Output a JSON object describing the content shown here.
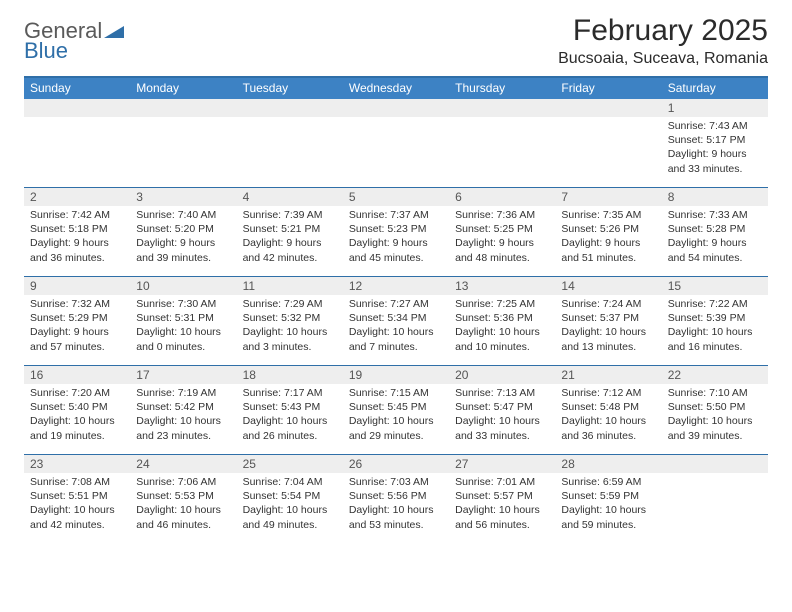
{
  "logo": {
    "word1": "General",
    "word2": "Blue",
    "tri_color": "#2f6fa8"
  },
  "title": "February 2025",
  "location": "Bucsoaia, Suceava, Romania",
  "header_bar_color": "#3d82c4",
  "border_color": "#2f6fa8",
  "daynum_bg": "#eeeeee",
  "dow": [
    "Sunday",
    "Monday",
    "Tuesday",
    "Wednesday",
    "Thursday",
    "Friday",
    "Saturday"
  ],
  "weeks": [
    [
      {
        "n": "",
        "sunrise": "",
        "sunset": "",
        "daylight1": "",
        "daylight2": ""
      },
      {
        "n": "",
        "sunrise": "",
        "sunset": "",
        "daylight1": "",
        "daylight2": ""
      },
      {
        "n": "",
        "sunrise": "",
        "sunset": "",
        "daylight1": "",
        "daylight2": ""
      },
      {
        "n": "",
        "sunrise": "",
        "sunset": "",
        "daylight1": "",
        "daylight2": ""
      },
      {
        "n": "",
        "sunrise": "",
        "sunset": "",
        "daylight1": "",
        "daylight2": ""
      },
      {
        "n": "",
        "sunrise": "",
        "sunset": "",
        "daylight1": "",
        "daylight2": ""
      },
      {
        "n": "1",
        "sunrise": "Sunrise: 7:43 AM",
        "sunset": "Sunset: 5:17 PM",
        "daylight1": "Daylight: 9 hours",
        "daylight2": "and 33 minutes."
      }
    ],
    [
      {
        "n": "2",
        "sunrise": "Sunrise: 7:42 AM",
        "sunset": "Sunset: 5:18 PM",
        "daylight1": "Daylight: 9 hours",
        "daylight2": "and 36 minutes."
      },
      {
        "n": "3",
        "sunrise": "Sunrise: 7:40 AM",
        "sunset": "Sunset: 5:20 PM",
        "daylight1": "Daylight: 9 hours",
        "daylight2": "and 39 minutes."
      },
      {
        "n": "4",
        "sunrise": "Sunrise: 7:39 AM",
        "sunset": "Sunset: 5:21 PM",
        "daylight1": "Daylight: 9 hours",
        "daylight2": "and 42 minutes."
      },
      {
        "n": "5",
        "sunrise": "Sunrise: 7:37 AM",
        "sunset": "Sunset: 5:23 PM",
        "daylight1": "Daylight: 9 hours",
        "daylight2": "and 45 minutes."
      },
      {
        "n": "6",
        "sunrise": "Sunrise: 7:36 AM",
        "sunset": "Sunset: 5:25 PM",
        "daylight1": "Daylight: 9 hours",
        "daylight2": "and 48 minutes."
      },
      {
        "n": "7",
        "sunrise": "Sunrise: 7:35 AM",
        "sunset": "Sunset: 5:26 PM",
        "daylight1": "Daylight: 9 hours",
        "daylight2": "and 51 minutes."
      },
      {
        "n": "8",
        "sunrise": "Sunrise: 7:33 AM",
        "sunset": "Sunset: 5:28 PM",
        "daylight1": "Daylight: 9 hours",
        "daylight2": "and 54 minutes."
      }
    ],
    [
      {
        "n": "9",
        "sunrise": "Sunrise: 7:32 AM",
        "sunset": "Sunset: 5:29 PM",
        "daylight1": "Daylight: 9 hours",
        "daylight2": "and 57 minutes."
      },
      {
        "n": "10",
        "sunrise": "Sunrise: 7:30 AM",
        "sunset": "Sunset: 5:31 PM",
        "daylight1": "Daylight: 10 hours",
        "daylight2": "and 0 minutes."
      },
      {
        "n": "11",
        "sunrise": "Sunrise: 7:29 AM",
        "sunset": "Sunset: 5:32 PM",
        "daylight1": "Daylight: 10 hours",
        "daylight2": "and 3 minutes."
      },
      {
        "n": "12",
        "sunrise": "Sunrise: 7:27 AM",
        "sunset": "Sunset: 5:34 PM",
        "daylight1": "Daylight: 10 hours",
        "daylight2": "and 7 minutes."
      },
      {
        "n": "13",
        "sunrise": "Sunrise: 7:25 AM",
        "sunset": "Sunset: 5:36 PM",
        "daylight1": "Daylight: 10 hours",
        "daylight2": "and 10 minutes."
      },
      {
        "n": "14",
        "sunrise": "Sunrise: 7:24 AM",
        "sunset": "Sunset: 5:37 PM",
        "daylight1": "Daylight: 10 hours",
        "daylight2": "and 13 minutes."
      },
      {
        "n": "15",
        "sunrise": "Sunrise: 7:22 AM",
        "sunset": "Sunset: 5:39 PM",
        "daylight1": "Daylight: 10 hours",
        "daylight2": "and 16 minutes."
      }
    ],
    [
      {
        "n": "16",
        "sunrise": "Sunrise: 7:20 AM",
        "sunset": "Sunset: 5:40 PM",
        "daylight1": "Daylight: 10 hours",
        "daylight2": "and 19 minutes."
      },
      {
        "n": "17",
        "sunrise": "Sunrise: 7:19 AM",
        "sunset": "Sunset: 5:42 PM",
        "daylight1": "Daylight: 10 hours",
        "daylight2": "and 23 minutes."
      },
      {
        "n": "18",
        "sunrise": "Sunrise: 7:17 AM",
        "sunset": "Sunset: 5:43 PM",
        "daylight1": "Daylight: 10 hours",
        "daylight2": "and 26 minutes."
      },
      {
        "n": "19",
        "sunrise": "Sunrise: 7:15 AM",
        "sunset": "Sunset: 5:45 PM",
        "daylight1": "Daylight: 10 hours",
        "daylight2": "and 29 minutes."
      },
      {
        "n": "20",
        "sunrise": "Sunrise: 7:13 AM",
        "sunset": "Sunset: 5:47 PM",
        "daylight1": "Daylight: 10 hours",
        "daylight2": "and 33 minutes."
      },
      {
        "n": "21",
        "sunrise": "Sunrise: 7:12 AM",
        "sunset": "Sunset: 5:48 PM",
        "daylight1": "Daylight: 10 hours",
        "daylight2": "and 36 minutes."
      },
      {
        "n": "22",
        "sunrise": "Sunrise: 7:10 AM",
        "sunset": "Sunset: 5:50 PM",
        "daylight1": "Daylight: 10 hours",
        "daylight2": "and 39 minutes."
      }
    ],
    [
      {
        "n": "23",
        "sunrise": "Sunrise: 7:08 AM",
        "sunset": "Sunset: 5:51 PM",
        "daylight1": "Daylight: 10 hours",
        "daylight2": "and 42 minutes."
      },
      {
        "n": "24",
        "sunrise": "Sunrise: 7:06 AM",
        "sunset": "Sunset: 5:53 PM",
        "daylight1": "Daylight: 10 hours",
        "daylight2": "and 46 minutes."
      },
      {
        "n": "25",
        "sunrise": "Sunrise: 7:04 AM",
        "sunset": "Sunset: 5:54 PM",
        "daylight1": "Daylight: 10 hours",
        "daylight2": "and 49 minutes."
      },
      {
        "n": "26",
        "sunrise": "Sunrise: 7:03 AM",
        "sunset": "Sunset: 5:56 PM",
        "daylight1": "Daylight: 10 hours",
        "daylight2": "and 53 minutes."
      },
      {
        "n": "27",
        "sunrise": "Sunrise: 7:01 AM",
        "sunset": "Sunset: 5:57 PM",
        "daylight1": "Daylight: 10 hours",
        "daylight2": "and 56 minutes."
      },
      {
        "n": "28",
        "sunrise": "Sunrise: 6:59 AM",
        "sunset": "Sunset: 5:59 PM",
        "daylight1": "Daylight: 10 hours",
        "daylight2": "and 59 minutes."
      },
      {
        "n": "",
        "sunrise": "",
        "sunset": "",
        "daylight1": "",
        "daylight2": ""
      }
    ]
  ]
}
